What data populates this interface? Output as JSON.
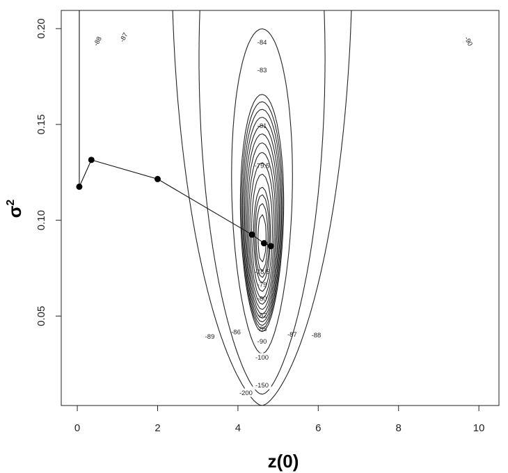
{
  "chart_data": {
    "type": "contour",
    "xlabel": "z(0)",
    "ylabel": "σ",
    "ylabel_sup": "2",
    "xlim": [
      -0.4,
      10.5
    ],
    "ylim": [
      0.0033,
      0.2095
    ],
    "x_ticks": [
      0,
      2,
      4,
      6,
      8,
      10
    ],
    "y_ticks": [
      0.05,
      0.1,
      0.15,
      0.2
    ],
    "y_tick_labels": [
      "0.05",
      "0.10",
      "0.15",
      "0.20"
    ],
    "grid": false,
    "optimum": {
      "x": 4.6,
      "y": 0.09
    },
    "contour_levels": [
      {
        "level": -78.5,
        "label": "-78.5",
        "label_at": [
          4.6,
          0.0732
        ]
      },
      {
        "level": -79,
        "label": "-79",
        "label_at": [
          4.6,
          0.0665
        ]
      },
      {
        "level": -79.5,
        "label": "-79.5",
        "label_at": [
          4.6,
          0.1285
        ]
      },
      {
        "level": -80,
        "label": "-80",
        "label_at": [
          4.6,
          0.0592
        ]
      },
      {
        "level": -81,
        "label": "-81",
        "label_at": [
          4.6,
          0.1495
        ]
      },
      {
        "level": -82,
        "label": "-82",
        "label_at": [
          4.6,
          0.0505
        ]
      },
      {
        "level": -83,
        "label": "-83",
        "label_at": [
          4.6,
          0.1785
        ]
      },
      {
        "level": -84,
        "label": "-84",
        "label_at": [
          4.6,
          0.193
        ]
      },
      {
        "level": -85,
        "label": "-85",
        "label_at": [
          4.6,
          0.0435
        ]
      },
      {
        "level": -86,
        "label": "-86",
        "label_at": [
          3.95,
          0.0418
        ]
      },
      {
        "level": -87,
        "label": "-87",
        "label_at": [
          5.35,
          0.0405
        ]
      },
      {
        "level": -88,
        "label": "-88",
        "label_at": [
          5.95,
          0.0402
        ]
      },
      {
        "level": -89,
        "label": "-89",
        "label_at": [
          3.3,
          0.0395
        ]
      },
      {
        "level": -90,
        "label": "-90",
        "label_at": [
          4.6,
          0.0368
        ]
      },
      {
        "level": -100,
        "label": "-100",
        "label_at": [
          4.6,
          0.0285
        ]
      },
      {
        "level": -150,
        "label": "-150",
        "label_at": [
          4.6,
          0.014
        ]
      },
      {
        "level": -200,
        "label": "-200",
        "label_at": [
          4.2,
          0.01
        ]
      }
    ],
    "corner_labels": [
      {
        "label": "-88",
        "at": [
          0.5,
          0.1935
        ],
        "rotate": -62
      },
      {
        "label": "-87",
        "at": [
          1.15,
          0.1955
        ],
        "rotate": -62
      },
      {
        "label": "-90",
        "at": [
          9.75,
          0.1935
        ],
        "rotate": 62
      }
    ],
    "optimization_path": {
      "x": [
        0.05,
        0.35,
        2.0,
        4.35,
        4.65,
        4.82
      ],
      "y": [
        0.1175,
        0.1315,
        0.1215,
        0.0925,
        0.088,
        0.0865
      ]
    },
    "vertical_line": {
      "x": 0.05,
      "y_from": 0.1175,
      "y_to": 0.2095
    }
  }
}
